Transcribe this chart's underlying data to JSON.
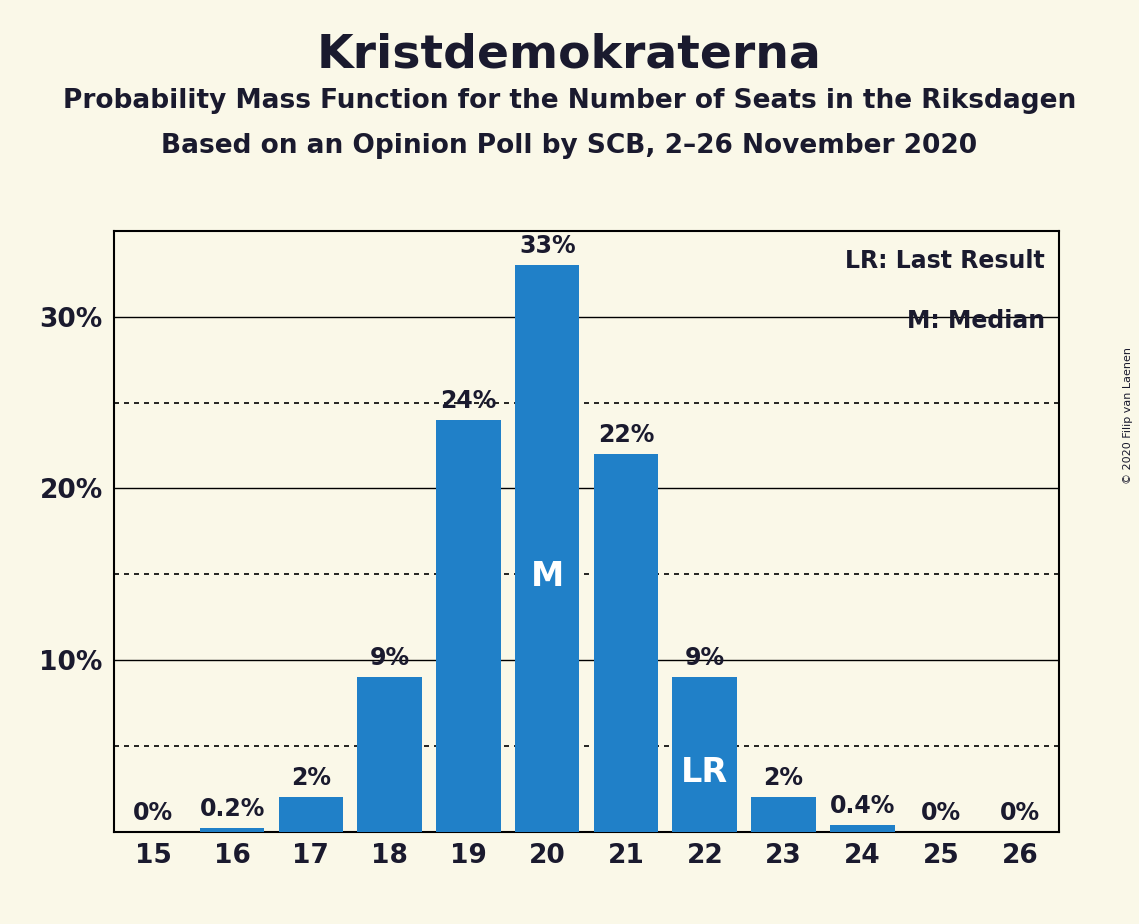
{
  "title_display": "Kristdemokraterna",
  "subtitle1": "Probability Mass Function for the Number of Seats in the Riksdagen",
  "subtitle2": "Based on an Opinion Poll by SCB, 2–26 November 2020",
  "copyright": "© 2020 Filip van Laenen",
  "categories": [
    15,
    16,
    17,
    18,
    19,
    20,
    21,
    22,
    23,
    24,
    25,
    26
  ],
  "values": [
    0.0,
    0.2,
    2.0,
    9.0,
    24.0,
    33.0,
    22.0,
    9.0,
    2.0,
    0.4,
    0.0,
    0.0
  ],
  "bar_color": "#2080c8",
  "background_color": "#faf8e8",
  "text_color": "#1a1a2e",
  "label_color_above": "#1a1a2e",
  "label_color_inside": "#ffffff",
  "median_seat": 20,
  "lr_seat": 22,
  "legend_lr": "LR: Last Result",
  "legend_m": "M: Median",
  "ylim": [
    0,
    35
  ],
  "solid_gridlines": [
    10,
    20,
    30
  ],
  "dotted_gridlines": [
    5,
    15,
    25
  ],
  "bar_width": 0.82,
  "title_fontsize": 34,
  "subtitle_fontsize": 19,
  "label_fontsize": 17,
  "tick_fontsize": 19,
  "legend_fontsize": 17,
  "inside_label_fontsize": 24,
  "copyright_fontsize": 8
}
